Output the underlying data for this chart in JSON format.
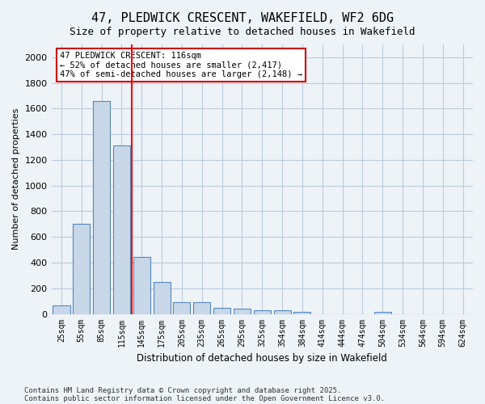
{
  "title": "47, PLEDWICK CRESCENT, WAKEFIELD, WF2 6DG",
  "subtitle": "Size of property relative to detached houses in Wakefield",
  "xlabel": "Distribution of detached houses by size in Wakefield",
  "ylabel": "Number of detached properties",
  "footnote1": "Contains HM Land Registry data © Crown copyright and database right 2025.",
  "footnote2": "Contains public sector information licensed under the Open Government Licence v3.0.",
  "categories": [
    "25sqm",
    "55sqm",
    "85sqm",
    "115sqm",
    "145sqm",
    "175sqm",
    "205sqm",
    "235sqm",
    "265sqm",
    "295sqm",
    "325sqm",
    "354sqm",
    "384sqm",
    "414sqm",
    "444sqm",
    "474sqm",
    "504sqm",
    "534sqm",
    "564sqm",
    "594sqm",
    "624sqm"
  ],
  "values": [
    65,
    700,
    1660,
    1310,
    445,
    250,
    90,
    90,
    50,
    40,
    28,
    28,
    15,
    0,
    0,
    0,
    15,
    0,
    0,
    0,
    0
  ],
  "bar_color": "#c8d8e8",
  "bar_edge_color": "#5588bb",
  "grid_color": "#bbccdd",
  "background_color": "#eef3f8",
  "red_line_x": 3.5,
  "annotation_text": "47 PLEDWICK CRESCENT: 116sqm\n← 52% of detached houses are smaller (2,417)\n47% of semi-detached houses are larger (2,148) →",
  "annotation_box_color": "#ffffff",
  "annotation_border_color": "#cc0000",
  "ylim": [
    0,
    2100
  ],
  "yticks": [
    0,
    200,
    400,
    600,
    800,
    1000,
    1200,
    1400,
    1600,
    1800,
    2000
  ]
}
